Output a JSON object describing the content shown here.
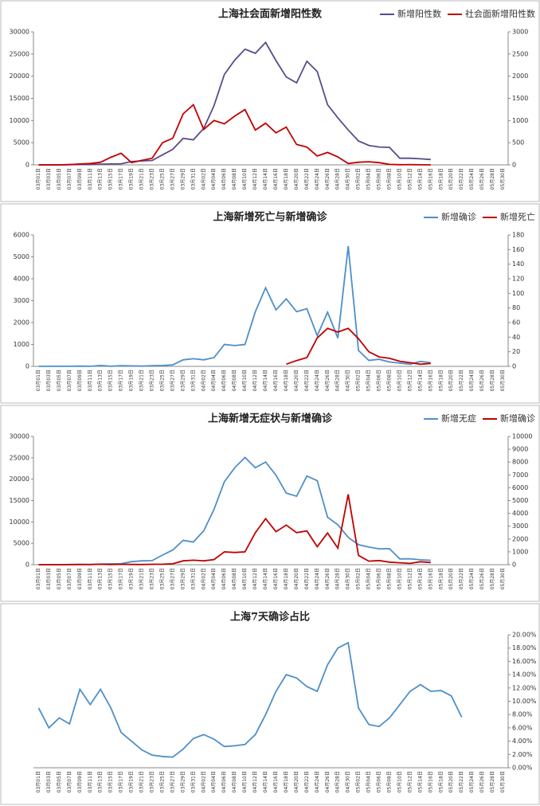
{
  "chart_data": [
    {
      "type": "line",
      "title": "上海社会面新增阳性数",
      "categories": [
        "03月01日",
        "03月03日",
        "03月05日",
        "03月07日",
        "03月09日",
        "03月11日",
        "03月13日",
        "03月15日",
        "03月17日",
        "03月19日",
        "03月21日",
        "03月23日",
        "03月25日",
        "03月27日",
        "03月29日",
        "03月31日",
        "04月02日",
        "04月04日",
        "04月06日",
        "04月08日",
        "04月10日",
        "04月12日",
        "04月14日",
        "04月16日",
        "04月18日",
        "04月20日",
        "04月22日",
        "04月24日",
        "04月26日",
        "04月28日",
        "04月30日",
        "05月02日",
        "05月04日",
        "05月06日",
        "05月08日",
        "05月10日",
        "05月12日",
        "05月14日",
        "05月16日",
        "05月18日",
        "05月20日",
        "05月22日",
        "05月24日",
        "05月26日",
        "05月28日",
        "05月30日"
      ],
      "ylim": [
        0,
        30000
      ],
      "yticks": [
        0,
        5000,
        10000,
        15000,
        20000,
        25000,
        30000
      ],
      "y2lim": [
        0,
        3000
      ],
      "y2ticks": [
        0,
        500,
        1000,
        1500,
        2000,
        2500,
        3000
      ],
      "legend": "top-right",
      "series": [
        {
          "name": "新增阳性数",
          "color": "#5b4a8b",
          "values": [
            0,
            5,
            3,
            50,
            76,
            75,
            169,
            202,
            260,
            734,
            896,
            981,
            2269,
            3500,
            5982,
            5653,
            8226,
            13354,
            20398,
            23624,
            26087,
            25173,
            27605,
            23513,
            19831,
            18495,
            23370,
            21058,
            13562,
            10622,
            7872,
            5395,
            4390,
            4024,
            3947,
            1487,
            1487,
            1369,
            1200,
            null,
            null,
            null,
            null,
            null,
            null,
            null
          ]
        },
        {
          "name": "社会面新增阳性数",
          "color": "#c00000",
          "axis": "y2",
          "values": [
            0,
            0,
            0,
            5,
            20,
            30,
            60,
            170,
            262,
            50,
            100,
            150,
            500,
            600,
            1150,
            1357,
            800,
            1000,
            925,
            1100,
            1246,
            785,
            940,
            722,
            852,
            460,
            400,
            200,
            280,
            180,
            30,
            60,
            70,
            50,
            10,
            3,
            5,
            1,
            0,
            null,
            null,
            null,
            null,
            null,
            null,
            null
          ]
        }
      ]
    },
    {
      "type": "line",
      "title": "上海新增死亡与新增确诊",
      "categories": [
        "03月01日",
        "03月03日",
        "03月05日",
        "03月07日",
        "03月09日",
        "03月11日",
        "03月13日",
        "03月15日",
        "03月17日",
        "03月19日",
        "03月21日",
        "03月23日",
        "03月25日",
        "03月27日",
        "03月29日",
        "03月31日",
        "04月02日",
        "04月04日",
        "04月06日",
        "04月08日",
        "04月10日",
        "04月12日",
        "04月14日",
        "04月16日",
        "04月18日",
        "04月20日",
        "04月22日",
        "04月24日",
        "04月26日",
        "04月28日",
        "04月30日",
        "05月02日",
        "05月04日",
        "05月06日",
        "05月08日",
        "05月10日",
        "05月12日",
        "05月14日",
        "05月16日",
        "05月18日",
        "05月20日",
        "05月22日",
        "05月24日",
        "05月26日",
        "05月28日",
        "05月30日"
      ],
      "ylim": [
        0,
        6000
      ],
      "yticks": [
        0,
        1000,
        2000,
        3000,
        4000,
        5000,
        6000
      ],
      "y2lim": [
        0,
        180
      ],
      "y2ticks": [
        0,
        20,
        40,
        60,
        80,
        100,
        120,
        140,
        160,
        180
      ],
      "legend": "top-right",
      "series": [
        {
          "name": "新增确诊",
          "color": "#4e8fc8",
          "values": [
            0,
            2,
            3,
            4,
            10,
            5,
            40,
            5,
            30,
            20,
            10,
            30,
            40,
            70,
            300,
            350,
            300,
            400,
            1000,
            950,
            1000,
            2500,
            3590,
            2573,
            3084,
            2494,
            2634,
            1401,
            2472,
            1292,
            5487,
            727,
            274,
            322,
            200,
            150,
            100,
            227,
            166,
            null,
            null,
            null,
            null,
            null,
            null,
            null
          ]
        },
        {
          "name": "新增死亡",
          "color": "#c00000",
          "axis": "y2",
          "values": [
            null,
            null,
            null,
            null,
            null,
            null,
            null,
            null,
            null,
            null,
            null,
            null,
            null,
            null,
            null,
            null,
            null,
            null,
            null,
            null,
            null,
            null,
            null,
            null,
            3,
            8,
            12,
            39,
            52,
            47,
            52,
            38,
            20,
            13,
            11,
            7,
            5,
            3,
            4,
            null,
            null,
            null,
            null,
            null,
            null,
            null
          ]
        }
      ]
    },
    {
      "type": "line",
      "title": "上海新增无症状与新增确诊",
      "categories": [
        "03月01日",
        "03月03日",
        "03月05日",
        "03月07日",
        "03月09日",
        "03月11日",
        "03月13日",
        "03月15日",
        "03月17日",
        "03月19日",
        "03月21日",
        "03月23日",
        "03月25日",
        "03月27日",
        "03月29日",
        "03月31日",
        "04月02日",
        "04月04日",
        "04月06日",
        "04月08日",
        "04月10日",
        "04月12日",
        "04月14日",
        "04月16日",
        "04月18日",
        "04月20日",
        "04月22日",
        "04月24日",
        "04月26日",
        "04月28日",
        "04月30日",
        "05月02日",
        "05月04日",
        "05月06日",
        "05月08日",
        "05月10日",
        "05月12日",
        "05月14日",
        "05月16日",
        "05月18日",
        "05月20日",
        "05月22日",
        "05月24日",
        "05月26日",
        "05月28日",
        "05月30日"
      ],
      "ylim": [
        0,
        30000
      ],
      "yticks": [
        0,
        5000,
        10000,
        15000,
        20000,
        25000,
        30000
      ],
      "y2lim": [
        0,
        10000
      ],
      "y2ticks": [
        0,
        1000,
        2000,
        3000,
        4000,
        5000,
        6000,
        7000,
        8000,
        9000,
        10000
      ],
      "legend": "top-right",
      "series": [
        {
          "name": "新增无症",
          "color": "#4e8fc8",
          "values": [
            0,
            3,
            2,
            46,
            66,
            70,
            129,
            197,
            230,
            714,
            886,
            951,
            2229,
            3430,
            5682,
            5303,
            7926,
            12954,
            19398,
            22674,
            25087,
            22673,
            24015,
            20940,
            16747,
            16001,
            20736,
            19657,
            11090,
            9330,
            6385,
            4668,
            4116,
            3702,
            3747,
            1337,
            1387,
            1142,
            1034,
            null,
            null,
            null,
            null,
            null,
            null,
            null
          ]
        },
        {
          "name": "新增确诊",
          "color": "#c00000",
          "axis": "y2",
          "values": [
            0,
            2,
            3,
            4,
            10,
            5,
            40,
            5,
            30,
            20,
            10,
            30,
            40,
            70,
            300,
            350,
            300,
            400,
            1000,
            950,
            1000,
            2500,
            3590,
            2573,
            3084,
            2494,
            2634,
            1401,
            2472,
            1292,
            5487,
            727,
            274,
            322,
            200,
            150,
            100,
            227,
            166,
            null,
            null,
            null,
            null,
            null,
            null,
            null
          ]
        }
      ]
    },
    {
      "type": "line",
      "title": "上海7天确诊占比",
      "categories": [
        "03月01日",
        "03月03日",
        "03月05日",
        "03月07日",
        "03月09日",
        "03月11日",
        "03月13日",
        "03月15日",
        "03月17日",
        "03月19日",
        "03月21日",
        "03月23日",
        "03月25日",
        "03月27日",
        "03月29日",
        "03月31日",
        "04月02日",
        "04月04日",
        "04月06日",
        "04月08日",
        "04月10日",
        "04月12日",
        "04月14日",
        "04月16日",
        "04月18日",
        "04月20日",
        "04月22日",
        "04月24日",
        "04月26日",
        "04月28日",
        "04月30日",
        "05月02日",
        "05月04日",
        "05月06日",
        "05月08日",
        "05月10日",
        "05月12日",
        "05月14日",
        "05月16日",
        "05月18日",
        "05月20日",
        "05月22日",
        "05月24日",
        "05月26日",
        "05月28日",
        "05月30日"
      ],
      "y2lim": [
        0,
        20
      ],
      "y2ticks": [
        {
          "value": 0,
          "label": "0.00%"
        },
        {
          "value": 2,
          "label": "2.00%"
        },
        {
          "value": 4,
          "label": "4.00%"
        },
        {
          "value": 6,
          "label": "6.00%"
        },
        {
          "value": 8,
          "label": "8.00%"
        },
        {
          "value": 10,
          "label": "10.00%"
        },
        {
          "value": 12,
          "label": "12.00%"
        },
        {
          "value": 14,
          "label": "14.00%"
        },
        {
          "value": 16,
          "label": "16.00%"
        },
        {
          "value": 18,
          "label": "18.00%"
        },
        {
          "value": 20,
          "label": "20.00%"
        }
      ],
      "series": [
        {
          "color": "#4e8fc8",
          "axis": "y2",
          "values": [
            9,
            6,
            7.5,
            6.6,
            11.8,
            9.5,
            11.8,
            9,
            5.3,
            4,
            2.7,
            1.9,
            1.7,
            1.6,
            2.8,
            4.4,
            5,
            4.3,
            3.2,
            3.3,
            3.5,
            5,
            8,
            11.5,
            14,
            13.5,
            12.2,
            11.5,
            15.5,
            18,
            18.8,
            9,
            6.5,
            6.2,
            7.5,
            9.5,
            11.5,
            12.5,
            11.5,
            11.6,
            10.8,
            7.6,
            null,
            null,
            null,
            null
          ]
        }
      ]
    }
  ]
}
